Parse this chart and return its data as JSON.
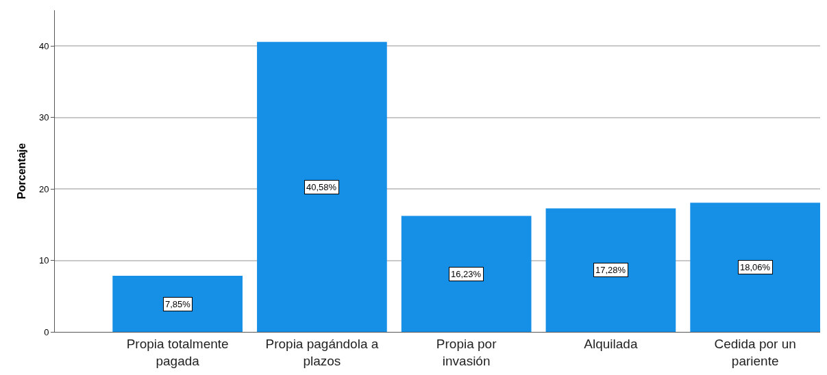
{
  "chart_data": {
    "type": "bar",
    "ylabel": "Porcentaje",
    "categories": [
      "Propia totalmente pagada",
      "Propia pagándola a plazos",
      "Propia por invasión",
      "Alquilada",
      "Cedida por un pariente"
    ],
    "values": [
      7.85,
      40.58,
      16.23,
      17.28,
      18.06
    ],
    "value_labels": [
      "7,85%",
      "40,58%",
      "16,23%",
      "17,28%",
      "18,06%"
    ],
    "color": "#1690e6",
    "ylim": [
      0,
      45
    ],
    "yticks": [
      0,
      10,
      20,
      30,
      40
    ],
    "grid": "y",
    "legend": false
  }
}
